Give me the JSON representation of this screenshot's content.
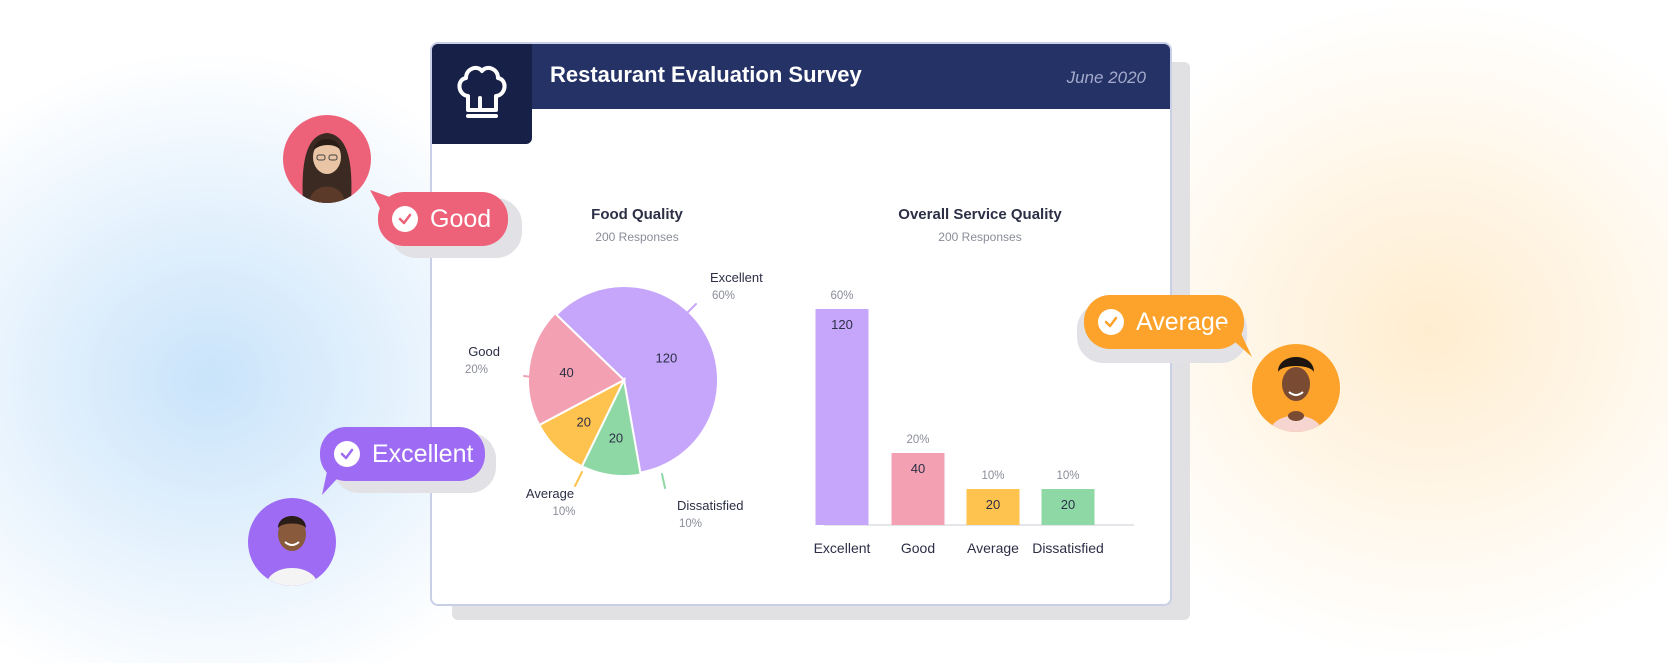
{
  "header": {
    "title": "Restaurant Evaluation Survey",
    "date": "June 2020"
  },
  "bubbles": {
    "good": "Good",
    "excellent": "Excellent",
    "average": "Average"
  },
  "colors": {
    "header": "#253266",
    "logo_bg": "#172046",
    "excellent": "#c6a6fb",
    "good": "#f3a0b3",
    "average": "#fec24f",
    "dissatisfied": "#8ed8a6",
    "bubble_good": "#ee6279",
    "bubble_excellent": "#9e6cf4",
    "bubble_average": "#fda22b"
  },
  "icons": [
    "chef-hat-icon",
    "check-icon"
  ],
  "chart_data": [
    {
      "type": "pie",
      "title": "Food Quality",
      "subtitle": "200 Responses",
      "categories": [
        "Excellent",
        "Good",
        "Average",
        "Dissatisfied"
      ],
      "values": [
        120,
        40,
        20,
        20
      ],
      "percents": [
        "60%",
        "20%",
        "10%",
        "10%"
      ]
    },
    {
      "type": "bar",
      "title": "Overall Service Quality",
      "subtitle": "200 Responses",
      "categories": [
        "Excellent",
        "Good",
        "Average",
        "Dissatisfied"
      ],
      "values": [
        120,
        40,
        20,
        20
      ],
      "percents": [
        "60%",
        "20%",
        "10%",
        "10%"
      ],
      "ylim": [
        0,
        120
      ],
      "grid": false
    }
  ]
}
